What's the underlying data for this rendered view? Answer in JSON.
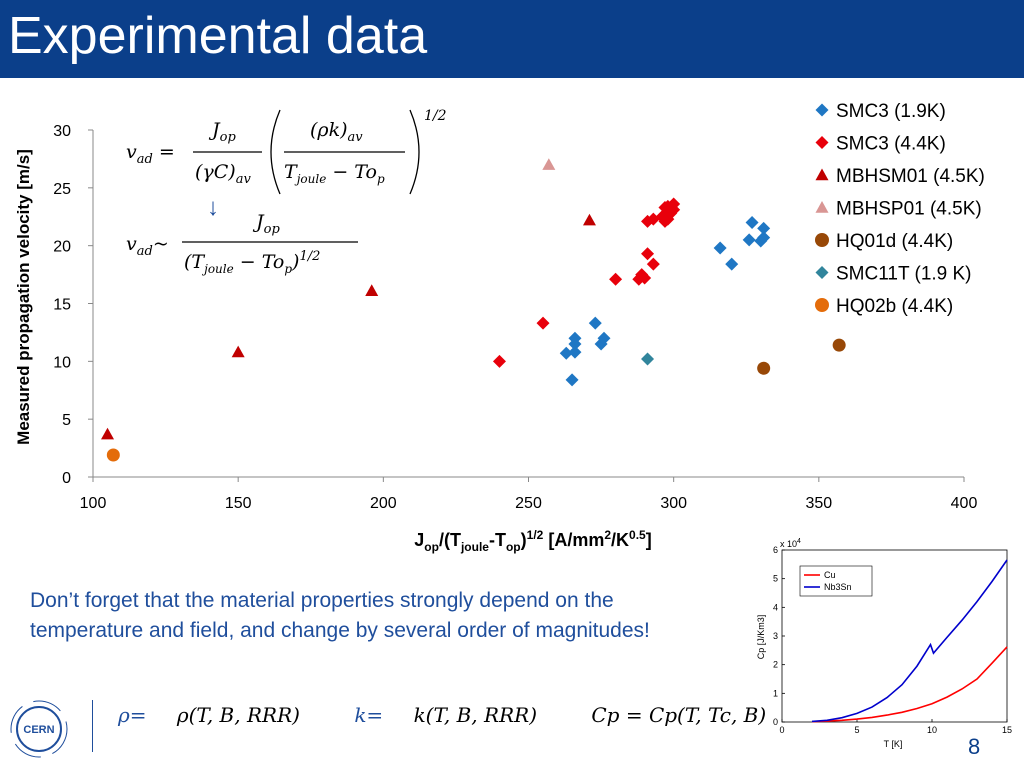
{
  "slide": {
    "title": "Experimental data",
    "page_number": "8",
    "note": "Don’t forget that the material properties strongly depend on the temperature and field, and change by several order of magnitudes!",
    "logo_text": "CERN"
  },
  "equations": {
    "vad_full_lhs": "v",
    "vad_sub": "ad",
    "eq1_num1": "J",
    "eq1_num1_sub": "op",
    "eq1_den1": "(γC)",
    "eq1_den1_sub": "av",
    "eq1_num2": "(ρk)",
    "eq1_num2_sub": "av",
    "eq1_den2": "T",
    "eq1_den2_sub": "joule",
    "eq1_den2_rest": " − To",
    "eq1_den2_rest_sub": "p",
    "eq1_exp": "1/2",
    "arrow": "↓",
    "eq2_num": "J",
    "eq2_num_sub": "op",
    "eq2_den": "(T",
    "eq2_den_sub": "joule",
    "eq2_den_rest": " − To",
    "eq2_den_rest_sub": "p",
    "eq2_den_close": ")",
    "eq2_den_exp": "1/2",
    "tilde": "~"
  },
  "properties": {
    "rho": "ρ=",
    "rho_expr": "ρ(T, B, RRR)",
    "k": "k=",
    "k_expr": "k(T, B, RRR)",
    "cp": "Cp = Cp(T, Tc, B)"
  },
  "chart_data": [
    {
      "type": "scatter",
      "title": "",
      "xlabel": "Jop/(Tjoule-Top)^1/2 [A/mm2/K0.5]",
      "xlabel_parts": [
        "J",
        "op",
        "/(T",
        "joule",
        "-T",
        "op",
        ")",
        "1/2",
        " [A/mm",
        "2",
        "/K",
        "0.5",
        "]"
      ],
      "ylabel": "Measured propagation velocity [m/s]",
      "xlim": [
        100,
        400
      ],
      "ylim": [
        0,
        30
      ],
      "xticks": [
        100,
        150,
        200,
        250,
        300,
        350,
        400
      ],
      "yticks": [
        0,
        5,
        10,
        15,
        20,
        25,
        30
      ],
      "grid": false,
      "legend_position": "top-right",
      "series": [
        {
          "name": "SMC3 (1.9K)",
          "marker": "diamond",
          "color": "#1f77c4",
          "points": [
            [
              265,
              8.4
            ],
            [
              263,
              10.7
            ],
            [
              266,
              10.8
            ],
            [
              266,
              11.5
            ],
            [
              266,
              12
            ],
            [
              273,
              13.3
            ],
            [
              275,
              11.5
            ],
            [
              276,
              12
            ],
            [
              316,
              19.8
            ],
            [
              320,
              18.4
            ],
            [
              326,
              20.5
            ],
            [
              327,
              22
            ],
            [
              330,
              20.4
            ],
            [
              331,
              20.7
            ],
            [
              331,
              21.5
            ]
          ]
        },
        {
          "name": "SMC3 (4.4K)",
          "marker": "diamond",
          "color": "#e8000b",
          "points": [
            [
              240,
              10
            ],
            [
              255,
              13.3
            ],
            [
              280,
              17.1
            ],
            [
              288,
              17.1
            ],
            [
              289,
              17.5
            ],
            [
              290,
              17.2
            ],
            [
              291,
              19.3
            ],
            [
              293,
              18.4
            ],
            [
              291,
              22.1
            ],
            [
              293,
              22.3
            ],
            [
              296,
              22.5
            ],
            [
              297,
              23.3
            ],
            [
              297,
              22.1
            ],
            [
              298,
              22.3
            ],
            [
              299,
              22.8
            ],
            [
              300,
              23.1
            ],
            [
              300,
              23.6
            ],
            [
              298,
              23.4
            ]
          ]
        },
        {
          "name": "MBHSM01 (4.5K)",
          "marker": "triangle",
          "color": "#c00000",
          "points": [
            [
              105,
              3.7
            ],
            [
              150,
              10.8
            ],
            [
              196,
              16.1
            ],
            [
              271,
              22.2
            ]
          ]
        },
        {
          "name": "MBHSP01 (4.5K)",
          "marker": "triangle",
          "color": "#d99694",
          "points": [
            [
              257,
              27
            ]
          ]
        },
        {
          "name": "HQ01d (4.4K)",
          "marker": "circle",
          "color": "#984807",
          "points": [
            [
              331,
              9.4
            ],
            [
              357,
              11.4
            ]
          ]
        },
        {
          "name": "SMC11T (1.9 K)",
          "marker": "diamond",
          "color": "#31859c",
          "points": [
            [
              291,
              10.2
            ]
          ]
        },
        {
          "name": "HQ02b (4.4K)",
          "marker": "circle",
          "color": "#e46c0a",
          "points": [
            [
              107,
              1.9
            ]
          ]
        }
      ]
    },
    {
      "type": "line",
      "title": "",
      "xlabel": "T [K]",
      "ylabel": "Cp [J/Km3]",
      "y_multiplier": "x 10",
      "y_multiplier_exp": "4",
      "xlim": [
        0,
        15
      ],
      "ylim": [
        0,
        6
      ],
      "xticks": [
        0,
        5,
        10,
        15
      ],
      "yticks": [
        0,
        1,
        2,
        3,
        4,
        5,
        6
      ],
      "grid": false,
      "legend_position": "top-left",
      "series": [
        {
          "name": "Cu",
          "color": "#ff0000",
          "x": [
            2,
            3,
            4,
            5,
            6,
            7,
            8,
            9,
            10,
            11,
            12,
            13,
            14,
            15
          ],
          "y": [
            0.01,
            0.03,
            0.06,
            0.1,
            0.16,
            0.24,
            0.34,
            0.47,
            0.64,
            0.87,
            1.15,
            1.5,
            2.05,
            2.62
          ]
        },
        {
          "name": "Nb3Sn",
          "color": "#0000cc",
          "x": [
            2,
            3,
            4,
            5,
            6,
            7,
            8,
            9,
            9.9,
            10.1,
            11,
            12,
            13,
            14,
            15
          ],
          "y": [
            0.02,
            0.06,
            0.15,
            0.3,
            0.52,
            0.85,
            1.3,
            1.95,
            2.7,
            2.4,
            2.95,
            3.55,
            4.2,
            4.9,
            5.65
          ]
        }
      ]
    }
  ]
}
